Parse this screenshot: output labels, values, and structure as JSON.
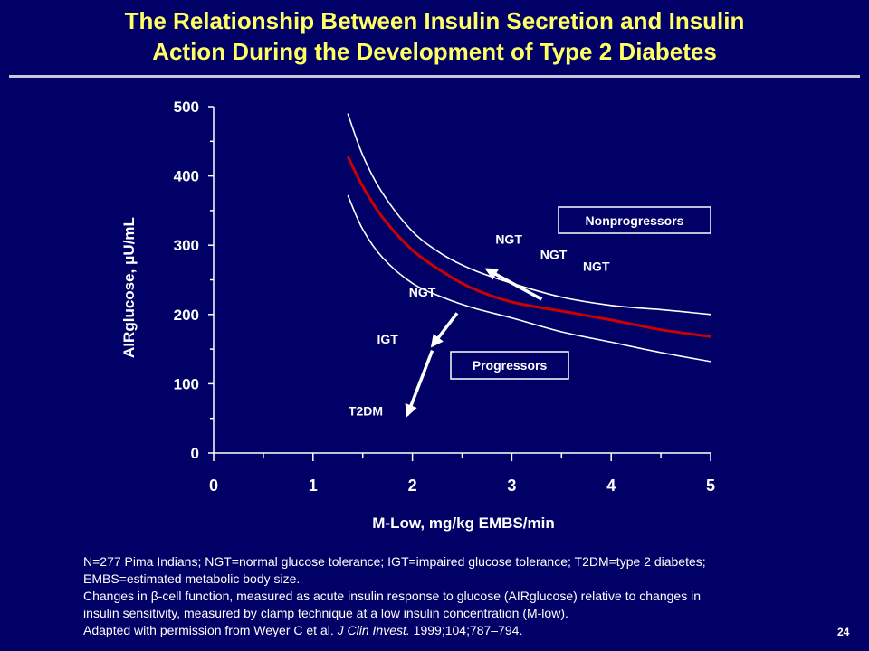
{
  "slide": {
    "title_line1": "The Relationship Between Insulin Secretion and Insulin",
    "title_line2": "Action During the Development of Type 2 Diabetes",
    "page_number": "24",
    "colors": {
      "background": "#000066",
      "title": "#ffff66",
      "mean_curve": "#cc0000",
      "bounds": "#ffffff"
    }
  },
  "chart_data": {
    "type": "line",
    "xlabel": "M-Low, mg/kg EMBS/min",
    "ylabel": "AIRglucose, μU/mL",
    "xlim": [
      0,
      5
    ],
    "ylim": [
      0,
      500
    ],
    "x_ticks": [
      "0",
      "1",
      "2",
      "3",
      "4",
      "5"
    ],
    "y_ticks": [
      "0",
      "100",
      "200",
      "300",
      "400",
      "500"
    ],
    "series": [
      {
        "role": "upper-bound",
        "color": "#ffffff",
        "x": [
          1.35,
          1.5,
          1.7,
          2.0,
          2.3,
          2.6,
          3.0,
          3.5,
          4.0,
          4.5,
          5.0
        ],
        "y": [
          490,
          430,
          375,
          320,
          287,
          265,
          245,
          225,
          213,
          207,
          200
        ]
      },
      {
        "role": "mean",
        "color": "#cc0000",
        "x": [
          1.35,
          1.5,
          1.7,
          2.0,
          2.3,
          2.6,
          3.0,
          3.5,
          4.0,
          4.5,
          5.0
        ],
        "y": [
          428,
          385,
          340,
          293,
          262,
          238,
          218,
          205,
          192,
          178,
          168
        ]
      },
      {
        "role": "lower-bound",
        "color": "#ffffff",
        "x": [
          1.35,
          1.5,
          1.7,
          2.0,
          2.3,
          2.6,
          3.0,
          3.5,
          4.0,
          4.5,
          5.0
        ],
        "y": [
          372,
          323,
          282,
          245,
          225,
          210,
          195,
          175,
          160,
          145,
          132
        ]
      }
    ],
    "annotations": [
      {
        "text": "NGT",
        "x": 2.97,
        "y": 302
      },
      {
        "text": "NGT",
        "x": 3.42,
        "y": 280
      },
      {
        "text": "NGT",
        "x": 3.85,
        "y": 263
      },
      {
        "text": "NGT",
        "x": 2.1,
        "y": 226
      },
      {
        "text": "IGT",
        "x": 1.75,
        "y": 158
      },
      {
        "text": "T2DM",
        "x": 1.53,
        "y": 54
      }
    ],
    "arrows": [
      {
        "from": [
          3.3,
          222
        ],
        "to": [
          2.75,
          265
        ]
      },
      {
        "from": [
          2.45,
          202
        ],
        "to": [
          2.2,
          155
        ]
      },
      {
        "from": [
          2.2,
          148
        ],
        "to": [
          1.95,
          55
        ]
      }
    ],
    "legend_boxes": [
      {
        "text": "Nonprogressors",
        "position": "top-right"
      },
      {
        "text": "Progressors",
        "position": "center"
      }
    ]
  },
  "footnote": {
    "line1": "N=277 Pima Indians; NGT=normal glucose tolerance; IGT=impaired glucose tolerance; T2DM=type 2 diabetes;",
    "line2": "EMBS=estimated metabolic body size.",
    "line3": "Changes in β-cell function, measured as acute insulin response to glucose (AIRglucose) relative to changes in",
    "line4": "insulin sensitivity, measured by clamp technique at a low insulin concentration (M-low).",
    "line5_pre": "Adapted with permission from Weyer C et al. ",
    "line5_journal": "J Clin Invest.",
    "line5_post": " 1999;104;787–794."
  }
}
